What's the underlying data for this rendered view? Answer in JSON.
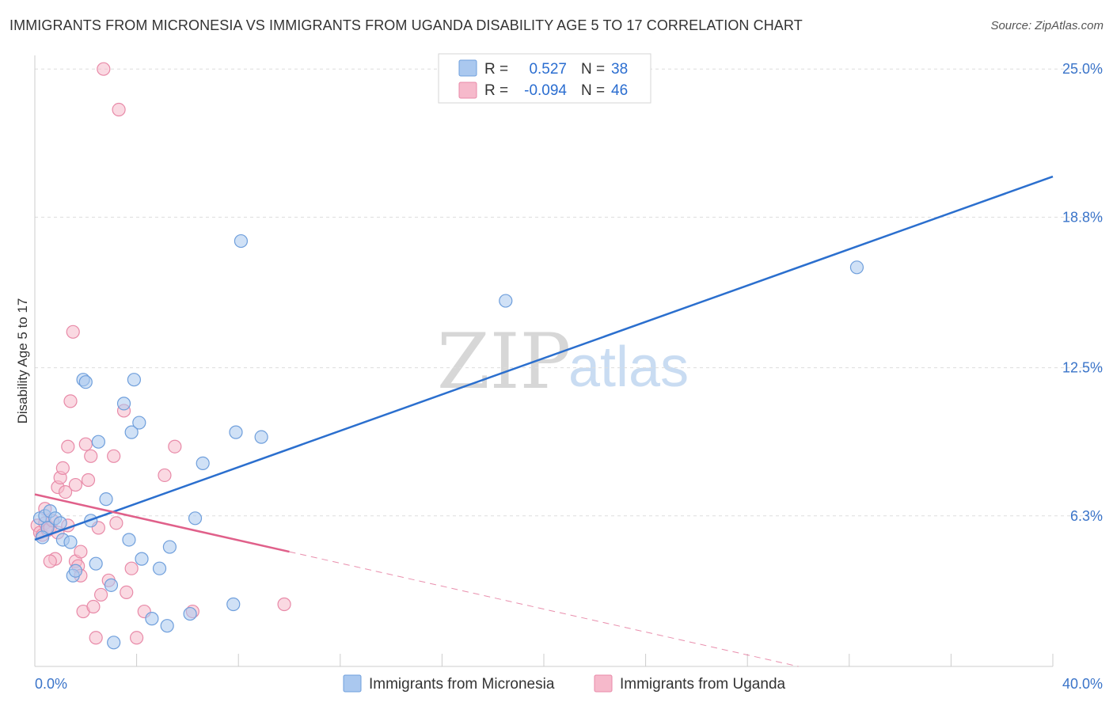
{
  "title": "IMMIGRANTS FROM MICRONESIA VS IMMIGRANTS FROM UGANDA DISABILITY AGE 5 TO 17 CORRELATION CHART",
  "source": "Source: ZipAtlas.com",
  "watermark": {
    "zip": "ZIP",
    "atlas": "atlas"
  },
  "legend": {
    "r_label": "R =",
    "n_label": "N =",
    "rows": [
      {
        "name": "micronesia",
        "r": "0.527",
        "n": "38"
      },
      {
        "name": "uganda",
        "r": "-0.094",
        "n": "46"
      }
    ]
  },
  "colors": {
    "micronesia_fill": "#aac8ef",
    "micronesia_stroke": "#6f9fdc",
    "micronesia_line": "#2b6fce",
    "uganda_fill": "#f6b9cb",
    "uganda_stroke": "#e88aa8",
    "uganda_line": "#e0608a",
    "grid": "#dddddd"
  },
  "chart_data": {
    "type": "scatter",
    "title": "IMMIGRANTS FROM MICRONESIA VS IMMIGRANTS FROM UGANDA DISABILITY AGE 5 TO 17 CORRELATION CHART",
    "xlabel": "",
    "ylabel": "Disability Age 5 to 17",
    "xlim": [
      0,
      40
    ],
    "ylim": [
      0,
      26
    ],
    "x_tick_labels": [
      "0.0%",
      "40.0%"
    ],
    "y_ticks": [
      {
        "value": 6.3,
        "label": "6.3%"
      },
      {
        "value": 12.5,
        "label": "12.5%"
      },
      {
        "value": 18.8,
        "label": "18.8%"
      },
      {
        "value": 25.0,
        "label": "25.0%"
      }
    ],
    "series": [
      {
        "name": "Immigrants from Micronesia",
        "r": 0.527,
        "n": 38,
        "trend": {
          "x": [
            0.0,
            40.0
          ],
          "y": [
            5.3,
            20.5
          ],
          "dashed_from": null
        },
        "points": [
          [
            0.2,
            6.2
          ],
          [
            0.4,
            6.3
          ],
          [
            0.5,
            5.8
          ],
          [
            0.6,
            6.5
          ],
          [
            0.8,
            6.2
          ],
          [
            1.0,
            6.0
          ],
          [
            1.1,
            5.3
          ],
          [
            1.4,
            5.2
          ],
          [
            1.5,
            3.8
          ],
          [
            1.6,
            4.0
          ],
          [
            1.9,
            12.0
          ],
          [
            2.0,
            11.9
          ],
          [
            2.2,
            6.1
          ],
          [
            2.4,
            4.3
          ],
          [
            2.5,
            9.4
          ],
          [
            2.8,
            7.0
          ],
          [
            3.0,
            3.4
          ],
          [
            3.1,
            1.0
          ],
          [
            3.5,
            11.0
          ],
          [
            3.7,
            5.3
          ],
          [
            3.8,
            9.8
          ],
          [
            3.9,
            12.0
          ],
          [
            4.1,
            10.2
          ],
          [
            4.2,
            4.5
          ],
          [
            4.6,
            2.0
          ],
          [
            4.9,
            4.1
          ],
          [
            5.2,
            1.7
          ],
          [
            5.3,
            5.0
          ],
          [
            6.1,
            2.2
          ],
          [
            6.3,
            6.2
          ],
          [
            6.6,
            8.5
          ],
          [
            7.8,
            2.6
          ],
          [
            7.9,
            9.8
          ],
          [
            8.1,
            17.8
          ],
          [
            8.9,
            9.6
          ],
          [
            18.5,
            15.3
          ],
          [
            32.3,
            16.7
          ],
          [
            0.3,
            5.4
          ]
        ]
      },
      {
        "name": "Immigrants from Uganda",
        "r": -0.094,
        "n": 46,
        "trend": {
          "x": [
            0.0,
            10.0,
            30.0
          ],
          "y": [
            7.2,
            4.8,
            0.0
          ],
          "dashed_from": 10.0
        },
        "points": [
          [
            0.1,
            5.9
          ],
          [
            0.2,
            5.6
          ],
          [
            0.3,
            5.5
          ],
          [
            0.4,
            6.0
          ],
          [
            0.5,
            5.7
          ],
          [
            0.6,
            5.8
          ],
          [
            0.7,
            6.1
          ],
          [
            0.8,
            4.5
          ],
          [
            0.9,
            7.5
          ],
          [
            1.0,
            7.9
          ],
          [
            1.1,
            8.3
          ],
          [
            1.2,
            7.3
          ],
          [
            1.3,
            9.2
          ],
          [
            1.4,
            11.1
          ],
          [
            1.5,
            14.0
          ],
          [
            1.6,
            4.4
          ],
          [
            1.7,
            4.2
          ],
          [
            1.8,
            3.8
          ],
          [
            1.9,
            2.3
          ],
          [
            2.0,
            9.3
          ],
          [
            2.1,
            7.8
          ],
          [
            2.2,
            8.8
          ],
          [
            2.3,
            2.5
          ],
          [
            2.4,
            1.2
          ],
          [
            2.6,
            3.0
          ],
          [
            2.7,
            25.0
          ],
          [
            2.9,
            3.6
          ],
          [
            3.1,
            8.8
          ],
          [
            3.2,
            6.0
          ],
          [
            3.3,
            23.3
          ],
          [
            3.5,
            10.7
          ],
          [
            3.6,
            3.1
          ],
          [
            3.8,
            4.1
          ],
          [
            4.0,
            1.2
          ],
          [
            4.3,
            2.3
          ],
          [
            5.1,
            8.0
          ],
          [
            5.5,
            9.2
          ],
          [
            6.2,
            2.3
          ],
          [
            9.8,
            2.6
          ],
          [
            0.6,
            4.4
          ],
          [
            1.3,
            5.9
          ],
          [
            1.6,
            7.6
          ],
          [
            0.9,
            5.6
          ],
          [
            2.5,
            5.8
          ],
          [
            0.4,
            6.6
          ],
          [
            1.8,
            4.8
          ]
        ]
      }
    ],
    "legend": [
      "Immigrants from Micronesia",
      "Immigrants from Uganda"
    ]
  }
}
